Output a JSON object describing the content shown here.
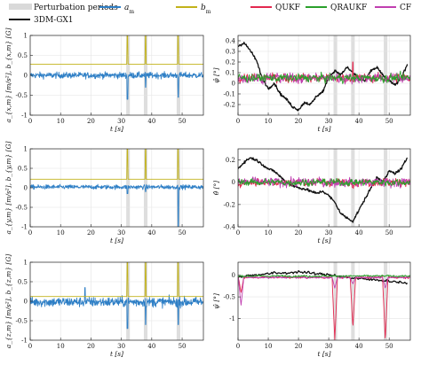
{
  "legend": {
    "items": [
      {
        "label": "Perturbation periods",
        "color": "#d9d9d9",
        "kind": "band"
      },
      {
        "label": "a",
        "sub": "m",
        "color": "#2e7fc6",
        "kind": "line"
      },
      {
        "label": "b",
        "sub": "m",
        "color": "#c2b21a",
        "kind": "line"
      },
      {
        "label": "QUKF",
        "color": "#e3284f",
        "kind": "line"
      },
      {
        "label": "QRAUKF",
        "color": "#2aa02b",
        "kind": "line"
      },
      {
        "label": "CF",
        "color": "#c03fb0",
        "kind": "line"
      },
      {
        "label": "3DM-GX1",
        "color": "#111111",
        "kind": "line"
      }
    ]
  },
  "chart_data": [
    {
      "type": "line",
      "panel": "left-1",
      "ylabel": "a_{x,m} [m/s²], b_{x,m} [G]",
      "xlabel": "t [s]",
      "xlim": [
        0,
        57
      ],
      "ylim": [
        -1,
        1
      ],
      "xticks": [
        0,
        10,
        20,
        30,
        40,
        50
      ],
      "yticks": [
        -1,
        -0.5,
        0,
        0.5,
        1
      ],
      "ytick_labels": [
        "-1",
        "-0.5",
        "0",
        "0.5",
        "1"
      ],
      "perturbation_periods": [
        [
          31.6,
          32.8
        ],
        [
          37.4,
          38.6
        ],
        [
          48.2,
          49.4
        ]
      ],
      "series": [
        {
          "name": "a_m",
          "noise_std": 0.055,
          "mean": 0.0,
          "spikes": [
            [
              32.0,
              -0.6
            ],
            [
              38.0,
              -0.3
            ],
            [
              48.7,
              -0.55
            ]
          ]
        },
        {
          "name": "b_m",
          "constant": 0.28,
          "spikes": [
            [
              32.0,
              1.0
            ],
            [
              38.0,
              1.0
            ],
            [
              48.7,
              1.0
            ]
          ]
        }
      ]
    },
    {
      "type": "line",
      "panel": "left-2",
      "ylabel": "a_{y,m} [m/s²], b_{y,m} [G]",
      "xlabel": "t [s]",
      "xlim": [
        0,
        57
      ],
      "ylim": [
        -1,
        1
      ],
      "xticks": [
        0,
        10,
        20,
        30,
        40,
        50
      ],
      "yticks": [
        -1,
        -0.5,
        0,
        0.5,
        1
      ],
      "ytick_labels": [
        "-1",
        "-0.5",
        "0",
        "0.5",
        "1"
      ],
      "perturbation_periods": [
        [
          31.6,
          32.8
        ],
        [
          37.4,
          38.6
        ],
        [
          48.2,
          49.4
        ]
      ],
      "series": [
        {
          "name": "a_m",
          "noise_std": 0.04,
          "mean": 0.02,
          "spikes": [
            [
              32.0,
              -0.15
            ],
            [
              38.0,
              -0.1
            ],
            [
              48.7,
              -1.0
            ]
          ]
        },
        {
          "name": "b_m",
          "constant": 0.22,
          "spikes": [
            [
              32.0,
              1.0
            ],
            [
              38.0,
              1.0
            ],
            [
              48.7,
              1.0
            ]
          ]
        }
      ]
    },
    {
      "type": "line",
      "panel": "left-3",
      "ylabel": "a_{z,m} [m/s²], b_{z,m} [G]",
      "xlabel": "t [s]",
      "xlim": [
        0,
        57
      ],
      "ylim": [
        -1,
        1
      ],
      "xticks": [
        0,
        10,
        20,
        30,
        40,
        50
      ],
      "yticks": [
        -1,
        -0.5,
        0,
        0.5,
        1
      ],
      "ytick_labels": [
        "-1",
        "-0.5",
        "0",
        "0.5",
        "1"
      ],
      "perturbation_periods": [
        [
          31.6,
          32.8
        ],
        [
          37.4,
          38.6
        ],
        [
          48.2,
          49.4
        ]
      ],
      "series": [
        {
          "name": "a_m",
          "noise_std": 0.09,
          "mean": -0.02,
          "spikes": [
            [
              18.0,
              0.35
            ],
            [
              32.0,
              -0.7
            ],
            [
              38.0,
              -0.6
            ],
            [
              48.7,
              -0.6
            ]
          ]
        },
        {
          "name": "b_m",
          "constant": 0.12,
          "spikes": [
            [
              32.0,
              1.0
            ],
            [
              38.0,
              1.0
            ],
            [
              48.7,
              1.0
            ]
          ]
        }
      ]
    },
    {
      "type": "line",
      "panel": "right-1",
      "ylabel": "φ̂ [°]",
      "xlabel": "t [s]",
      "xlim": [
        0,
        57
      ],
      "ylim": [
        -0.3,
        0.45
      ],
      "xticks": [
        0,
        10,
        20,
        30,
        40,
        50
      ],
      "yticks": [
        -0.2,
        -0.1,
        0,
        0.1,
        0.2,
        0.3,
        0.4
      ],
      "ytick_labels": [
        "-0.2",
        "-0.1",
        "0",
        "0.1",
        "0.2",
        "0.3",
        "0.4"
      ],
      "perturbation_periods": [
        [
          31.6,
          32.8
        ],
        [
          37.4,
          38.6
        ],
        [
          48.2,
          49.4
        ]
      ],
      "series": [
        {
          "name": "3DM-GX1",
          "x": [
            0,
            2,
            4,
            6,
            8,
            10,
            12,
            14,
            16,
            18,
            20,
            22,
            24,
            26,
            28,
            30,
            32,
            34,
            36,
            38,
            40,
            42,
            44,
            46,
            48,
            50,
            52,
            54,
            56
          ],
          "y": [
            0.35,
            0.38,
            0.31,
            0.22,
            0.05,
            -0.05,
            0.0,
            -0.1,
            -0.15,
            -0.22,
            -0.25,
            -0.18,
            -0.2,
            -0.12,
            -0.08,
            0.05,
            0.12,
            0.08,
            0.15,
            0.1,
            0.05,
            0.02,
            0.12,
            0.15,
            0.07,
            0.03,
            -0.02,
            0.05,
            0.18
          ]
        },
        {
          "name": "QUKF",
          "noise_std": 0.055,
          "mean": 0.05,
          "spikes": [
            [
              38.0,
              0.2
            ]
          ]
        },
        {
          "name": "CF",
          "noise_std": 0.06,
          "mean": 0.05
        },
        {
          "name": "QRAUKF",
          "noise_std": 0.05,
          "mean": 0.05
        }
      ]
    },
    {
      "type": "line",
      "panel": "right-2",
      "ylabel": "θ̂ [°]",
      "xlabel": "t [s]",
      "xlim": [
        0,
        57
      ],
      "ylim": [
        -0.4,
        0.3
      ],
      "xticks": [
        0,
        10,
        20,
        30,
        40,
        50
      ],
      "yticks": [
        -0.4,
        -0.2,
        0,
        0.2
      ],
      "ytick_labels": [
        "-0.4",
        "-0.2",
        "0",
        "0.2"
      ],
      "perturbation_periods": [
        [
          31.6,
          32.8
        ],
        [
          37.4,
          38.6
        ],
        [
          48.2,
          49.4
        ]
      ],
      "series": [
        {
          "name": "3DM-GX1",
          "x": [
            0,
            2,
            4,
            6,
            8,
            10,
            12,
            14,
            16,
            18,
            20,
            22,
            24,
            26,
            28,
            30,
            32,
            34,
            36,
            38,
            40,
            42,
            44,
            46,
            48,
            50,
            52,
            54,
            56
          ],
          "y": [
            0.12,
            0.18,
            0.22,
            0.2,
            0.16,
            0.12,
            0.1,
            0.05,
            0.0,
            -0.03,
            -0.05,
            -0.06,
            -0.08,
            -0.1,
            -0.08,
            -0.12,
            -0.18,
            -0.28,
            -0.32,
            -0.35,
            -0.25,
            -0.15,
            -0.05,
            0.05,
            0.0,
            0.1,
            0.08,
            0.12,
            0.22
          ]
        },
        {
          "name": "QUKF",
          "noise_std": 0.045,
          "mean": 0.0
        },
        {
          "name": "CF",
          "noise_std": 0.055,
          "mean": 0.0
        },
        {
          "name": "QRAUKF",
          "noise_std": 0.04,
          "mean": 0.0
        }
      ]
    },
    {
      "type": "line",
      "panel": "right-3",
      "ylabel": "ψ̂ [°]",
      "xlabel": "t [s]",
      "xlim": [
        0,
        57
      ],
      "ylim": [
        -1.5,
        0.3
      ],
      "xticks": [
        0,
        10,
        20,
        30,
        40,
        50
      ],
      "yticks": [
        -1.5,
        -1,
        -0.5,
        0
      ],
      "ytick_labels": [
        "",
        "-1",
        "-0.5",
        "0"
      ],
      "perturbation_periods": [
        [
          31.6,
          32.8
        ],
        [
          37.4,
          38.6
        ],
        [
          48.2,
          49.4
        ]
      ],
      "series": [
        {
          "name": "3DM-GX1",
          "x": [
            0,
            4,
            8,
            12,
            16,
            20,
            24,
            28,
            32,
            36,
            40,
            44,
            48,
            52,
            56
          ],
          "y": [
            -0.05,
            0.0,
            0.02,
            0.05,
            0.05,
            0.08,
            0.05,
            0.02,
            0.0,
            -0.05,
            -0.08,
            -0.1,
            -0.12,
            -0.15,
            -0.18
          ]
        },
        {
          "name": "QUKF",
          "noise_std": 0.03,
          "mean": -0.05,
          "dips": [
            [
              1.0,
              -0.4
            ],
            [
              32.0,
              -1.5
            ],
            [
              38.0,
              -1.2
            ],
            [
              48.7,
              -1.5
            ]
          ]
        },
        {
          "name": "CF",
          "noise_std": 0.03,
          "mean": -0.05,
          "dips": [
            [
              1.0,
              -0.7
            ],
            [
              32.0,
              -0.3
            ],
            [
              38.0,
              -0.2
            ],
            [
              48.7,
              -0.3
            ]
          ]
        },
        {
          "name": "QRAUKF",
          "noise_std": 0.03,
          "mean": -0.02
        }
      ]
    }
  ]
}
